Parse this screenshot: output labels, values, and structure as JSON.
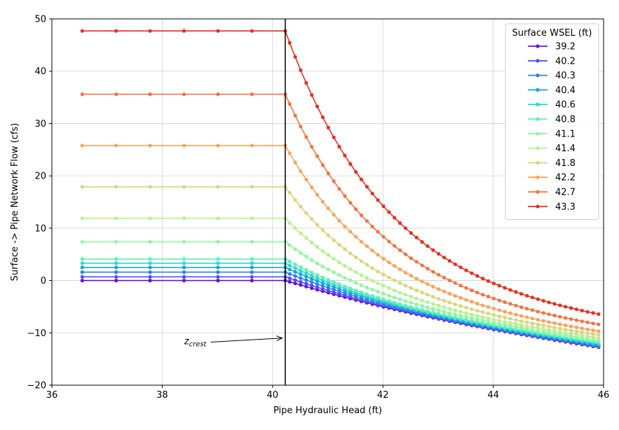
{
  "chart_data": {
    "type": "line",
    "xlabel": "Pipe Hydraulic Head (ft)",
    "ylabel": "Surface -> Pipe Network Flow (cfs)",
    "xlim": [
      36,
      46
    ],
    "ylim": [
      -20,
      50
    ],
    "xticks": [
      36,
      38,
      40,
      42,
      44,
      46
    ],
    "yticks": [
      -20,
      -10,
      0,
      10,
      20,
      30,
      40,
      50
    ],
    "grid": true,
    "legend_title": "Surface WSEL (ft)",
    "legend_placement": "top-right",
    "crest_x": 40.23,
    "annotation": {
      "text_base": "z",
      "text_sub": "crest",
      "x": 38.5,
      "y": -11.5,
      "arrow_to": [
        40.2,
        -11
      ]
    },
    "series": [
      {
        "name": "39.2",
        "color": "#6a0fd9",
        "flat": 0.0,
        "end": -13.1
      },
      {
        "name": "40.2",
        "color": "#4b4ff0",
        "flat": 0.7,
        "end": -13.0
      },
      {
        "name": "40.3",
        "color": "#2e7fe8",
        "flat": 1.6,
        "end": -12.9
      },
      {
        "name": "40.4",
        "color": "#13a5e0",
        "flat": 2.5,
        "end": -12.7
      },
      {
        "name": "40.6",
        "color": "#2dd6d0",
        "flat": 3.3,
        "end": -12.5
      },
      {
        "name": "40.8",
        "color": "#5cf2b2",
        "flat": 4.1,
        "end": -12.2
      },
      {
        "name": "41.1",
        "color": "#8ff6a0",
        "flat": 7.4,
        "end": -11.9
      },
      {
        "name": "41.4",
        "color": "#b7f08f",
        "flat": 11.9,
        "end": -11.6
      },
      {
        "name": "41.8",
        "color": "#d8d67a",
        "flat": 17.9,
        "end": -11.2
      },
      {
        "name": "42.2",
        "color": "#f7a35a",
        "flat": 25.8,
        "end": -10.8
      },
      {
        "name": "42.7",
        "color": "#f07442",
        "flat": 35.6,
        "end": -10.0
      },
      {
        "name": "43.3",
        "color": "#e6301f",
        "flat": 47.7,
        "end": -8.9
      }
    ]
  }
}
